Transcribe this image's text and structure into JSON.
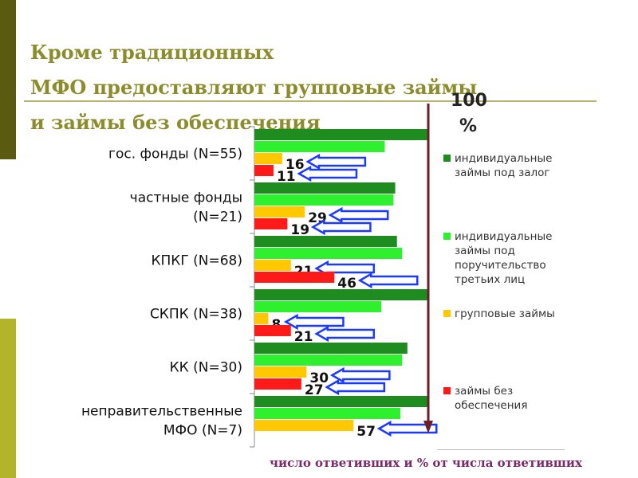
{
  "slide": {
    "title_line1": "Кроме традиционных",
    "title_line2": " МФО предоставляют групповые займы",
    "title_line3": "и займы без обеспечения",
    "footer": "число ответивших и % от числа ответивших",
    "hundred_label": "100",
    "percent_label": "%"
  },
  "colors": {
    "strip_top": "#5a5a10",
    "strip_bottom": "#b4b42a",
    "title": "#8c8c2c",
    "individual_collateral": "#1e8c1e",
    "individual_guarantee": "#2ef02e",
    "group": "#ffc800",
    "unsecured": "#ff1a1a",
    "arrow_fill": "#ffffff",
    "arrow_stroke": "#1a3aff",
    "line_100": "#6b1f2a"
  },
  "chart_data": {
    "type": "bar",
    "orientation": "horizontal",
    "categories": [
      "гос. фонды (N=55)",
      "частные фонды (N=21)",
      "КПКГ (N=68)",
      "СКПК (N=38)",
      "КК (N=30)",
      "неправительственные МФО (N=7)"
    ],
    "category_lines": [
      [
        "гос. фонды (N=55)"
      ],
      [
        "частные фонды",
        "(N=21)"
      ],
      [
        "КПКГ (N=68)"
      ],
      [
        "СКПК (N=38)"
      ],
      [
        "КК (N=30)"
      ],
      [
        "неправительственные",
        "МФО (N=7)"
      ]
    ],
    "series": [
      {
        "name": "индивидуальные займы под залог",
        "values": [
          100,
          81,
          82,
          100,
          88,
          100
        ]
      },
      {
        "name": "индивидуальные займы под поручительство третьих лиц",
        "values": [
          75,
          80,
          85,
          73,
          85,
          84
        ]
      },
      {
        "name": "групповые займы",
        "values": [
          16,
          29,
          21,
          8,
          30,
          57
        ]
      },
      {
        "name": "займы без обеспечения",
        "values": [
          11,
          19,
          46,
          21,
          27,
          null
        ]
      }
    ],
    "labeled_series": [
      2,
      3
    ],
    "xlim": [
      0,
      100
    ],
    "legend": "right",
    "grid": false
  }
}
